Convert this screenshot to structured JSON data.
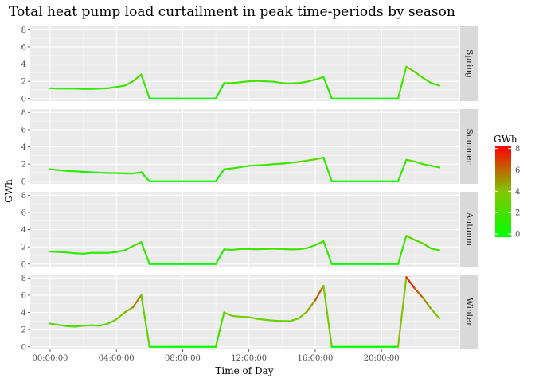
{
  "chart_data": {
    "type": "line",
    "title": "Total heat pump load curtailment in peak time-periods by season",
    "xlabel": "Time of Day",
    "ylabel": "GWh",
    "x_tick_labels": [
      "00:00:00",
      "04:00:00",
      "08:00:00",
      "12:00:00",
      "16:00:00",
      "20:00:00"
    ],
    "x_range_hours": [
      -1.2,
      24.7
    ],
    "y_ticks": [
      0,
      2,
      4,
      6,
      8
    ],
    "ylim": [
      -0.3,
      8.4
    ],
    "grid": true,
    "facet_labels": [
      "Spring",
      "Summer",
      "Autumn",
      "Winter"
    ],
    "color_legend": {
      "title": "GWh",
      "ticks": [
        0,
        2,
        4,
        6,
        8
      ],
      "low_color": "#00ff00",
      "high_color": "#ff0000",
      "range": [
        -0.3,
        8.2
      ]
    },
    "series": [
      {
        "name": "Spring",
        "points": [
          [
            0,
            1.2
          ],
          [
            0.5,
            1.15
          ],
          [
            1,
            1.15
          ],
          [
            1.5,
            1.15
          ],
          [
            2,
            1.12
          ],
          [
            2.5,
            1.12
          ],
          [
            3,
            1.15
          ],
          [
            3.5,
            1.2
          ],
          [
            4,
            1.35
          ],
          [
            4.5,
            1.5
          ],
          [
            5,
            2.0
          ],
          [
            5.5,
            2.8
          ],
          [
            6,
            0
          ],
          [
            10,
            0
          ],
          [
            10.5,
            1.8
          ],
          [
            11,
            1.8
          ],
          [
            11.5,
            1.9
          ],
          [
            12,
            2.0
          ],
          [
            12.5,
            2.05
          ],
          [
            13,
            2.0
          ],
          [
            13.5,
            1.95
          ],
          [
            14,
            1.8
          ],
          [
            14.5,
            1.75
          ],
          [
            15,
            1.8
          ],
          [
            15.5,
            1.95
          ],
          [
            16,
            2.2
          ],
          [
            16.5,
            2.5
          ],
          [
            17,
            0
          ],
          [
            21,
            0
          ],
          [
            21.5,
            3.7
          ],
          [
            22,
            3.1
          ],
          [
            22.5,
            2.4
          ],
          [
            23,
            1.8
          ],
          [
            23.5,
            1.5
          ]
        ]
      },
      {
        "name": "Summer",
        "points": [
          [
            0,
            1.4
          ],
          [
            0.5,
            1.3
          ],
          [
            1,
            1.2
          ],
          [
            1.5,
            1.15
          ],
          [
            2,
            1.1
          ],
          [
            2.5,
            1.05
          ],
          [
            3,
            1.0
          ],
          [
            3.5,
            0.95
          ],
          [
            4,
            0.95
          ],
          [
            4.5,
            0.9
          ],
          [
            5,
            0.9
          ],
          [
            5.5,
            1.05
          ],
          [
            6,
            0
          ],
          [
            10,
            0
          ],
          [
            10.5,
            1.4
          ],
          [
            11,
            1.5
          ],
          [
            11.5,
            1.65
          ],
          [
            12,
            1.8
          ],
          [
            12.5,
            1.85
          ],
          [
            13,
            1.9
          ],
          [
            13.5,
            2.0
          ],
          [
            14,
            2.05
          ],
          [
            14.5,
            2.15
          ],
          [
            15,
            2.25
          ],
          [
            15.5,
            2.4
          ],
          [
            16,
            2.55
          ],
          [
            16.5,
            2.75
          ],
          [
            17,
            0
          ],
          [
            21,
            0
          ],
          [
            21.5,
            2.5
          ],
          [
            22,
            2.3
          ],
          [
            22.5,
            2.0
          ],
          [
            23,
            1.8
          ],
          [
            23.5,
            1.6
          ]
        ]
      },
      {
        "name": "Autumn",
        "points": [
          [
            0,
            1.45
          ],
          [
            0.5,
            1.4
          ],
          [
            1,
            1.35
          ],
          [
            1.5,
            1.25
          ],
          [
            2,
            1.2
          ],
          [
            2.5,
            1.3
          ],
          [
            3,
            1.3
          ],
          [
            3.5,
            1.3
          ],
          [
            4,
            1.4
          ],
          [
            4.5,
            1.6
          ],
          [
            5,
            2.1
          ],
          [
            5.5,
            2.55
          ],
          [
            6,
            0
          ],
          [
            10,
            0
          ],
          [
            10.5,
            1.7
          ],
          [
            11,
            1.65
          ],
          [
            11.5,
            1.75
          ],
          [
            12,
            1.75
          ],
          [
            12.5,
            1.72
          ],
          [
            13,
            1.75
          ],
          [
            13.5,
            1.78
          ],
          [
            14,
            1.75
          ],
          [
            14.5,
            1.7
          ],
          [
            15,
            1.72
          ],
          [
            15.5,
            1.85
          ],
          [
            16,
            2.2
          ],
          [
            16.5,
            2.65
          ],
          [
            17,
            0
          ],
          [
            21,
            0
          ],
          [
            21.5,
            3.3
          ],
          [
            22,
            2.8
          ],
          [
            22.5,
            2.4
          ],
          [
            23,
            1.8
          ],
          [
            23.5,
            1.6
          ]
        ]
      },
      {
        "name": "Winter",
        "points": [
          [
            0,
            2.7
          ],
          [
            0.5,
            2.55
          ],
          [
            1,
            2.4
          ],
          [
            1.5,
            2.35
          ],
          [
            2,
            2.45
          ],
          [
            2.5,
            2.5
          ],
          [
            3,
            2.45
          ],
          [
            3.5,
            2.7
          ],
          [
            4,
            3.2
          ],
          [
            4.5,
            4.0
          ],
          [
            5,
            4.6
          ],
          [
            5.5,
            6.0
          ],
          [
            6,
            0
          ],
          [
            10,
            0
          ],
          [
            10.5,
            4.0
          ],
          [
            11,
            3.6
          ],
          [
            11.5,
            3.5
          ],
          [
            12,
            3.45
          ],
          [
            12.5,
            3.25
          ],
          [
            13,
            3.15
          ],
          [
            13.5,
            3.05
          ],
          [
            14,
            3.0
          ],
          [
            14.5,
            3.0
          ],
          [
            15,
            3.3
          ],
          [
            15.5,
            4.1
          ],
          [
            16,
            5.4
          ],
          [
            16.5,
            7.1
          ],
          [
            17,
            0
          ],
          [
            21,
            0
          ],
          [
            21.5,
            8.1
          ],
          [
            22,
            6.8
          ],
          [
            22.5,
            5.7
          ],
          [
            23,
            4.4
          ],
          [
            23.5,
            3.3
          ]
        ]
      }
    ]
  }
}
